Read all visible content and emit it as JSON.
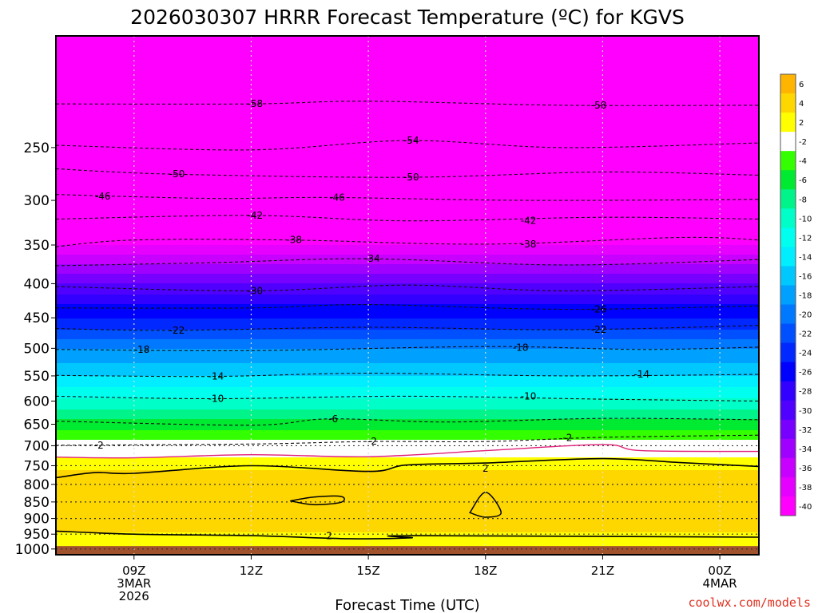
{
  "chart_data": {
    "type": "heatmap",
    "title": "2026030307 HRRR Forecast Temperature (ºC) for KGVS",
    "xlabel": "Forecast Time (UTC)",
    "ylabel": "",
    "x_range": [
      7,
      25
    ],
    "y_range": [
      170,
      1020
    ],
    "y_ticks": [
      250,
      300,
      350,
      400,
      450,
      500,
      550,
      600,
      650,
      700,
      750,
      800,
      850,
      900,
      950,
      1000
    ],
    "x_ticks": [
      {
        "x": 9,
        "label": "09Z",
        "sub1": "3MAR",
        "sub2": "2026"
      },
      {
        "x": 12,
        "label": "12Z",
        "sub1": "",
        "sub2": ""
      },
      {
        "x": 15,
        "label": "15Z",
        "sub1": "",
        "sub2": ""
      },
      {
        "x": 18,
        "label": "18Z",
        "sub1": "",
        "sub2": ""
      },
      {
        "x": 21,
        "label": "21Z",
        "sub1": "",
        "sub2": ""
      },
      {
        "x": 24,
        "label": "00Z",
        "sub1": "4MAR",
        "sub2": ""
      }
    ],
    "profile": [
      {
        "p": 170,
        "t": -60
      },
      {
        "p": 200,
        "t": -58
      },
      {
        "p": 250,
        "t": -54
      },
      {
        "p": 270,
        "t": -50
      },
      {
        "p": 300,
        "t": -46
      },
      {
        "p": 320,
        "t": -42
      },
      {
        "p": 350,
        "t": -38
      },
      {
        "p": 375,
        "t": -34
      },
      {
        "p": 400,
        "t": -30
      },
      {
        "p": 430,
        "t": -26
      },
      {
        "p": 470,
        "t": -22
      },
      {
        "p": 500,
        "t": -18
      },
      {
        "p": 550,
        "t": -14
      },
      {
        "p": 595,
        "t": -10
      },
      {
        "p": 640,
        "t": -6
      },
      {
        "p": 675,
        "t": -3
      },
      {
        "p": 700,
        "t": -1
      },
      {
        "p": 730,
        "t": 0
      },
      {
        "p": 760,
        "t": 2
      },
      {
        "p": 790,
        "t": 3.5
      },
      {
        "p": 870,
        "t": 4
      },
      {
        "p": 935,
        "t": 3
      },
      {
        "p": 955,
        "t": 1
      },
      {
        "p": 980,
        "t": 0
      },
      {
        "p": 1020,
        "t": 4
      }
    ],
    "contours": [
      {
        "value": "-58",
        "series": [
          {
            "x": 7,
            "p": 215
          },
          {
            "x": 12,
            "p": 215
          },
          {
            "x": 15,
            "p": 213
          },
          {
            "x": 20,
            "p": 216
          },
          {
            "x": 25,
            "p": 216
          }
        ]
      },
      {
        "value": "-54",
        "series": [
          {
            "x": 7,
            "p": 248
          },
          {
            "x": 12,
            "p": 252
          },
          {
            "x": 16,
            "p": 244
          },
          {
            "x": 20,
            "p": 250
          },
          {
            "x": 25,
            "p": 246
          }
        ]
      },
      {
        "value": "-50",
        "series": [
          {
            "x": 7,
            "p": 269
          },
          {
            "x": 10,
            "p": 274
          },
          {
            "x": 16,
            "p": 277
          },
          {
            "x": 21,
            "p": 272
          },
          {
            "x": 25,
            "p": 275
          }
        ]
      },
      {
        "value": "-46",
        "series": [
          {
            "x": 7,
            "p": 294
          },
          {
            "x": 11,
            "p": 298
          },
          {
            "x": 14,
            "p": 297
          },
          {
            "x": 19,
            "p": 300
          },
          {
            "x": 25,
            "p": 299
          }
        ]
      },
      {
        "value": "-42",
        "series": [
          {
            "x": 7,
            "p": 320
          },
          {
            "x": 12,
            "p": 316
          },
          {
            "x": 16,
            "p": 322
          },
          {
            "x": 21,
            "p": 318
          },
          {
            "x": 25,
            "p": 320
          }
        ]
      },
      {
        "value": "-38",
        "series": [
          {
            "x": 7,
            "p": 352
          },
          {
            "x": 9,
            "p": 344
          },
          {
            "x": 13,
            "p": 344
          },
          {
            "x": 18,
            "p": 349
          },
          {
            "x": 23,
            "p": 341
          },
          {
            "x": 25,
            "p": 344
          }
        ]
      },
      {
        "value": "-34",
        "series": [
          {
            "x": 7,
            "p": 376
          },
          {
            "x": 11,
            "p": 372
          },
          {
            "x": 15,
            "p": 367
          },
          {
            "x": 20,
            "p": 375
          },
          {
            "x": 25,
            "p": 368
          }
        ]
      },
      {
        "value": "-30",
        "series": [
          {
            "x": 7,
            "p": 404
          },
          {
            "x": 12,
            "p": 410
          },
          {
            "x": 16,
            "p": 402
          },
          {
            "x": 20,
            "p": 410
          },
          {
            "x": 25,
            "p": 404
          }
        ]
      },
      {
        "value": "-26",
        "series": [
          {
            "x": 7,
            "p": 435
          },
          {
            "x": 12,
            "p": 435
          },
          {
            "x": 15,
            "p": 430
          },
          {
            "x": 20,
            "p": 437
          },
          {
            "x": 25,
            "p": 432
          }
        ]
      },
      {
        "value": "-22",
        "series": [
          {
            "x": 7,
            "p": 467
          },
          {
            "x": 10,
            "p": 470
          },
          {
            "x": 15,
            "p": 465
          },
          {
            "x": 20,
            "p": 469
          },
          {
            "x": 25,
            "p": 462
          }
        ]
      },
      {
        "value": "-18",
        "series": [
          {
            "x": 7,
            "p": 502
          },
          {
            "x": 12,
            "p": 504
          },
          {
            "x": 18,
            "p": 497
          },
          {
            "x": 22,
            "p": 502
          },
          {
            "x": 25,
            "p": 498
          }
        ]
      },
      {
        "value": "-14",
        "series": [
          {
            "x": 7,
            "p": 549
          },
          {
            "x": 11,
            "p": 551
          },
          {
            "x": 15,
            "p": 545
          },
          {
            "x": 20,
            "p": 550
          },
          {
            "x": 25,
            "p": 547
          }
        ]
      },
      {
        "value": "-10",
        "series": [
          {
            "x": 7,
            "p": 590
          },
          {
            "x": 11,
            "p": 595
          },
          {
            "x": 16,
            "p": 590
          },
          {
            "x": 21,
            "p": 596
          },
          {
            "x": 25,
            "p": 600
          }
        ]
      },
      {
        "value": "-6",
        "series": [
          {
            "x": 7,
            "p": 643
          },
          {
            "x": 12,
            "p": 652
          },
          {
            "x": 14,
            "p": 638
          },
          {
            "x": 17,
            "p": 645
          },
          {
            "x": 21,
            "p": 637
          },
          {
            "x": 25,
            "p": 640
          }
        ]
      },
      {
        "value": "-2",
        "series": [
          {
            "x": 7,
            "p": 699
          },
          {
            "x": 12,
            "p": 696
          },
          {
            "x": 15,
            "p": 690
          },
          {
            "x": 18,
            "p": 690
          },
          {
            "x": 21,
            "p": 680
          },
          {
            "x": 25,
            "p": 675
          }
        ]
      }
    ],
    "contour_labels": [
      {
        "text": "-58",
        "x": 12.1,
        "p": 215
      },
      {
        "text": "-58",
        "x": 20.9,
        "p": 216
      },
      {
        "text": "-54",
        "x": 16.1,
        "p": 244
      },
      {
        "text": "-50",
        "x": 10.1,
        "p": 274
      },
      {
        "text": "-50",
        "x": 16.1,
        "p": 277
      },
      {
        "text": "-46",
        "x": 8.2,
        "p": 296
      },
      {
        "text": "-46",
        "x": 14.2,
        "p": 297
      },
      {
        "text": "-42",
        "x": 12.1,
        "p": 316
      },
      {
        "text": "-42",
        "x": 19.1,
        "p": 322
      },
      {
        "text": "-38",
        "x": 13.1,
        "p": 344
      },
      {
        "text": "-38",
        "x": 19.1,
        "p": 349
      },
      {
        "text": "-34",
        "x": 15.1,
        "p": 367
      },
      {
        "text": "-30",
        "x": 12.1,
        "p": 410
      },
      {
        "text": "-26",
        "x": 20.9,
        "p": 437
      },
      {
        "text": "-22",
        "x": 10.1,
        "p": 470
      },
      {
        "text": "-22",
        "x": 20.9,
        "p": 469
      },
      {
        "text": "-18",
        "x": 9.2,
        "p": 502
      },
      {
        "text": "-18",
        "x": 18.9,
        "p": 499
      },
      {
        "text": "-14",
        "x": 11.1,
        "p": 551
      },
      {
        "text": "-14",
        "x": 22,
        "p": 547
      },
      {
        "text": "-10",
        "x": 11.1,
        "p": 595
      },
      {
        "text": "-10",
        "x": 19.1,
        "p": 590
      },
      {
        "text": "-6",
        "x": 14.1,
        "p": 638
      },
      {
        "text": "-2",
        "x": 8.1,
        "p": 699
      },
      {
        "text": "-2",
        "x": 15.1,
        "p": 690
      },
      {
        "text": "-2",
        "x": 20.1,
        "p": 681
      }
    ],
    "zero_line": [
      {
        "x": 7,
        "p": 728
      },
      {
        "x": 9,
        "p": 730
      },
      {
        "x": 12,
        "p": 722
      },
      {
        "x": 15,
        "p": 727
      },
      {
        "x": 18,
        "p": 712
      },
      {
        "x": 21,
        "p": 697
      },
      {
        "x": 22,
        "p": 712
      },
      {
        "x": 25,
        "p": 714
      }
    ],
    "plus2_upper": [
      {
        "x": 7,
        "p": 782
      },
      {
        "x": 8,
        "p": 768
      },
      {
        "x": 9,
        "p": 770
      },
      {
        "x": 12,
        "p": 750
      },
      {
        "x": 15,
        "p": 765
      },
      {
        "x": 16,
        "p": 748
      },
      {
        "x": 18,
        "p": 743
      },
      {
        "x": 21,
        "p": 732
      },
      {
        "x": 23,
        "p": 742
      },
      {
        "x": 25,
        "p": 752
      }
    ],
    "plus2_lower": [
      {
        "x": 7,
        "p": 940
      },
      {
        "x": 9,
        "p": 950
      },
      {
        "x": 12,
        "p": 955
      },
      {
        "x": 14.5,
        "p": 965
      },
      {
        "x": 16.1,
        "p": 962
      },
      {
        "x": 16.1,
        "p": 955
      },
      {
        "x": 25,
        "p": 960
      }
    ],
    "plus4_cells": [
      [
        {
          "x": 13,
          "p": 847
        },
        {
          "x": 13.6,
          "p": 836
        },
        {
          "x": 14.3,
          "p": 834
        },
        {
          "x": 14.3,
          "p": 851
        },
        {
          "x": 13.6,
          "p": 858
        }
      ],
      [
        {
          "x": 17.6,
          "p": 882
        },
        {
          "x": 18,
          "p": 822
        },
        {
          "x": 18.4,
          "p": 882
        },
        {
          "x": 18,
          "p": 896
        }
      ]
    ],
    "plus2_labels": [
      {
        "text": "2",
        "x": 18,
        "p": 757
      },
      {
        "text": "2",
        "x": 14,
        "p": 956
      }
    ],
    "colorbar": {
      "levels": [
        "6",
        "4",
        "2",
        "-2",
        "-4",
        "-6",
        "-8",
        "-10",
        "-12",
        "-14",
        "-16",
        "-18",
        "-20",
        "-22",
        "-24",
        "-26",
        "-28",
        "-30",
        "-32",
        "-34",
        "-36",
        "-38",
        "-40"
      ],
      "colors": [
        "#ffb400",
        "#ffd700",
        "#ffff00",
        "#ffffff",
        "#33ff00",
        "#00ea32",
        "#00f48a",
        "#00ffc8",
        "#00ffee",
        "#00eeff",
        "#00c8ff",
        "#00a0ff",
        "#0078ff",
        "#0050ff",
        "#0028ff",
        "#0000ff",
        "#3200ff",
        "#5000ff",
        "#7800ff",
        "#a000ff",
        "#c800ff",
        "#e600ff",
        "#ff00ff"
      ]
    },
    "surface_color": "#a0522d"
  },
  "credit": "coolwx.com/models"
}
